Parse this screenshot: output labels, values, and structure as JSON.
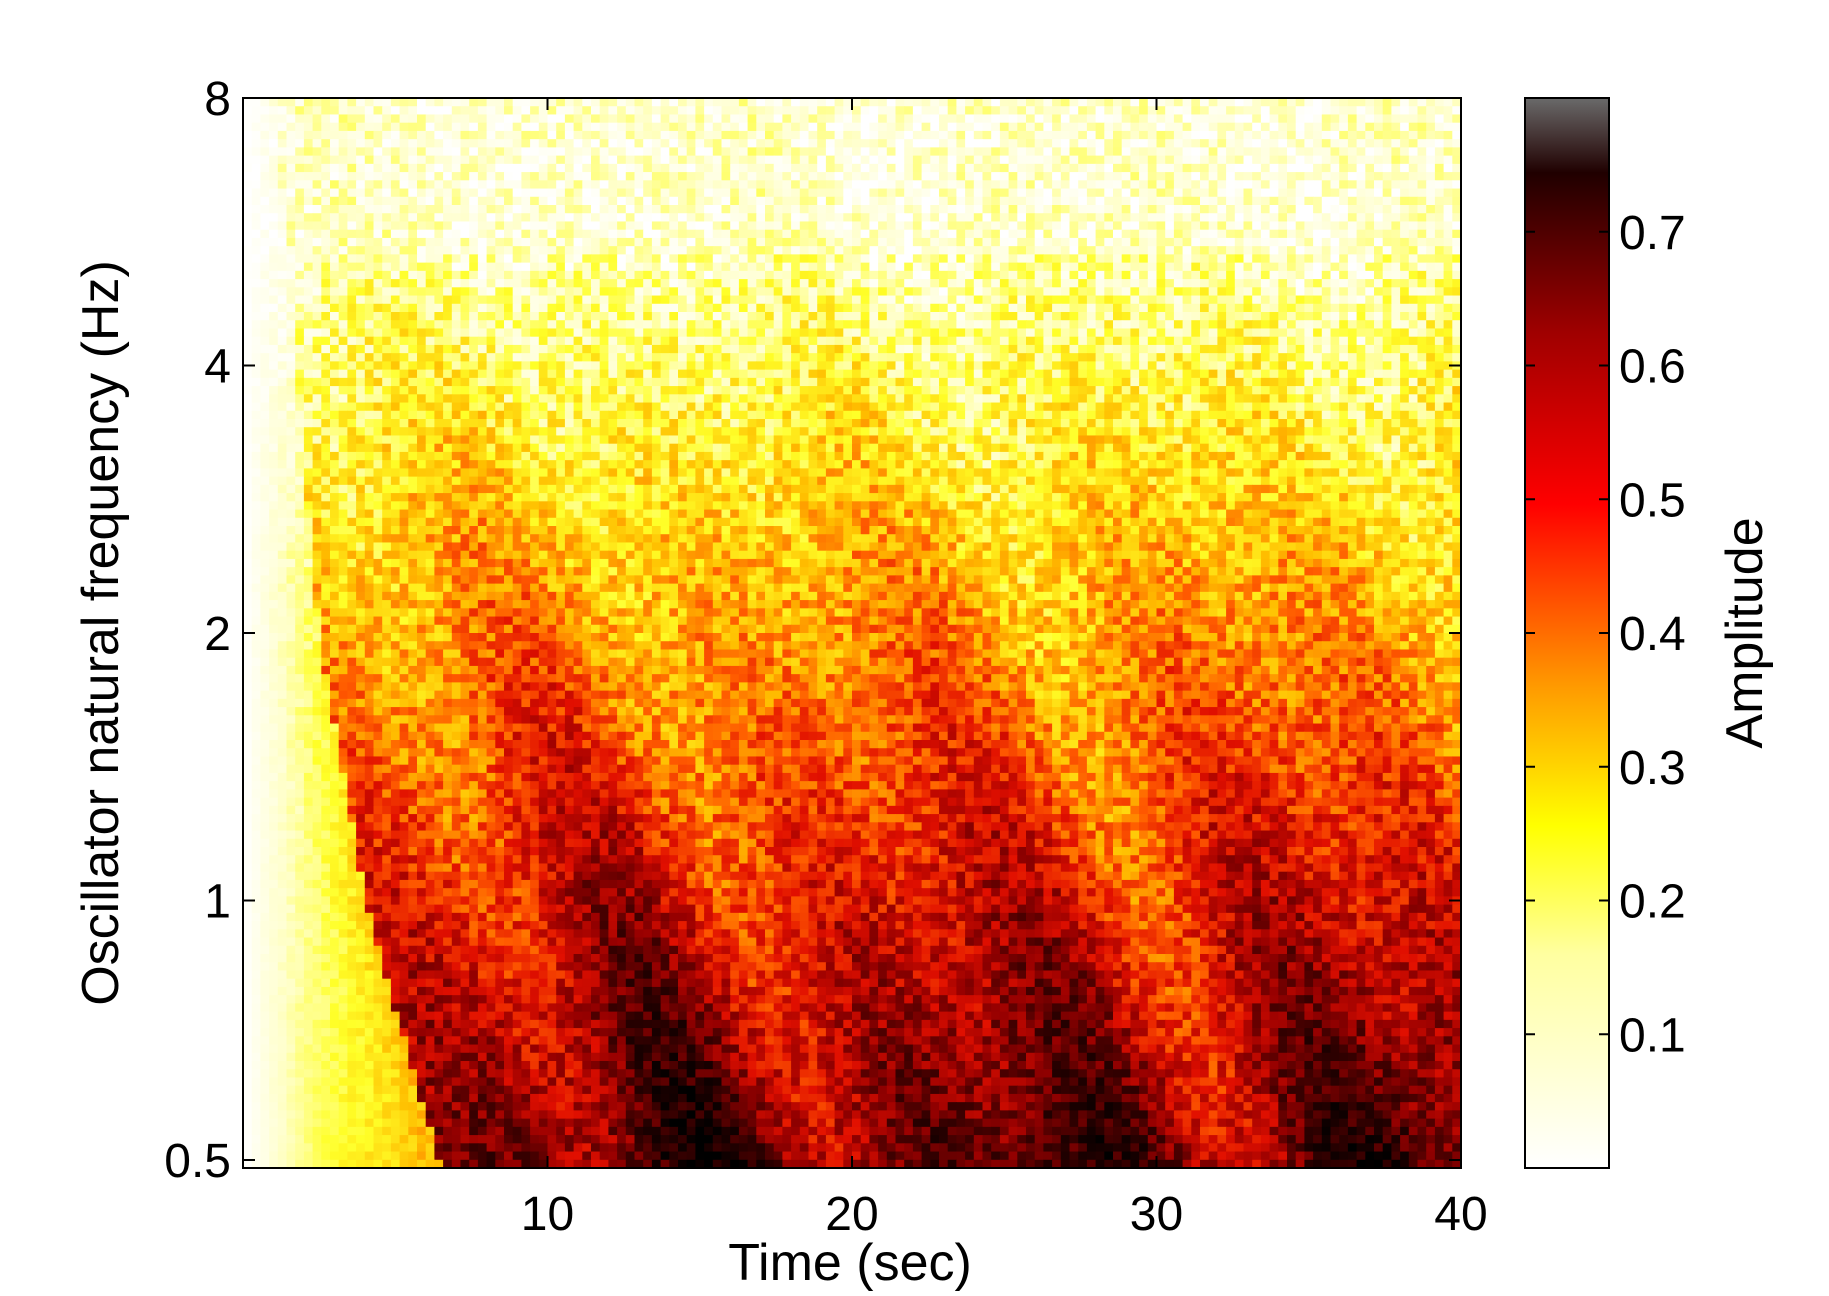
{
  "chart_data": {
    "type": "heatmap",
    "title": "",
    "xlabel": "Time (sec)",
    "ylabel": "Oscillator natural frequency (Hz)",
    "x_scale": "linear",
    "y_scale": "log2",
    "xlim": [
      0,
      40
    ],
    "ylim": [
      0.5,
      8
    ],
    "x_ticks": [
      10,
      20,
      30,
      40
    ],
    "x_tick_labels": [
      "10",
      "20",
      "30",
      "40"
    ],
    "y_ticks": [
      0.5,
      1,
      2,
      4,
      8
    ],
    "y_tick_labels": [
      "0.5",
      "1",
      "2",
      "4",
      "8"
    ],
    "colormap": "hot (reversed)",
    "colorbar": {
      "label": "Amplitude",
      "range": [
        0,
        0.8
      ],
      "ticks": [
        0.1,
        0.2,
        0.3,
        0.4,
        0.5,
        0.6,
        0.7
      ],
      "tick_labels": [
        "0.1",
        "0.2",
        "0.3",
        "0.4",
        "0.5",
        "0.6",
        "0.7"
      ],
      "position": "right"
    },
    "grid": false,
    "colors": {
      "low": "#ffffff",
      "mid_low": "#ffff00",
      "mid": "#ff0000",
      "high": "#000000"
    },
    "dominant_features": [
      {
        "t_range": [
          5,
          40
        ],
        "f_range": [
          0.5,
          0.9
        ],
        "amplitude": 0.7
      },
      {
        "t_range": [
          5,
          40
        ],
        "f_range": [
          0.9,
          1.3
        ],
        "amplitude": 0.55
      },
      {
        "t_range": [
          4,
          40
        ],
        "f_range": [
          1.3,
          2.2
        ],
        "amplitude": 0.45
      },
      {
        "t_range": [
          0,
          40
        ],
        "f_range": [
          2.2,
          4
        ],
        "amplitude": 0.3
      },
      {
        "t_range": [
          0,
          40
        ],
        "f_range": [
          4,
          8
        ],
        "amplitude": 0.18
      }
    ]
  }
}
